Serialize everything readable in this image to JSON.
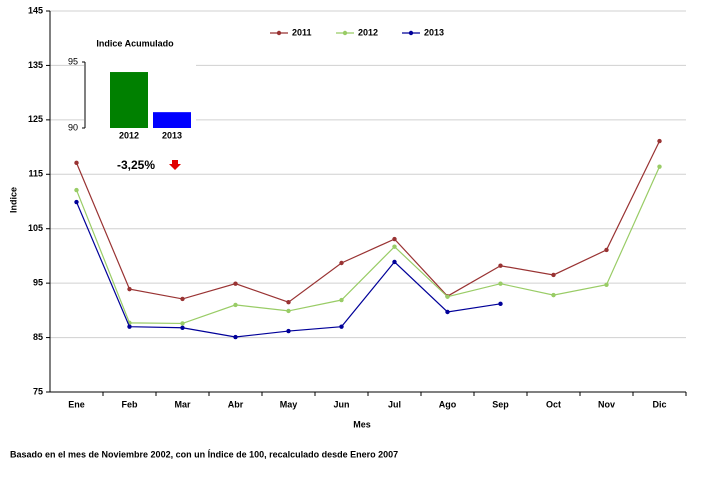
{
  "chart_data": [
    {
      "type": "line",
      "x_label": "Mes",
      "y_label": "Indice",
      "footnote": "Basado en el mes de Noviembre 2002, con un Índice de 100, recalculado desde Enero 2007",
      "categories": [
        "Ene",
        "Feb",
        "Mar",
        "Abr",
        "May",
        "Jun",
        "Jul",
        "Ago",
        "Sep",
        "Oct",
        "Nov",
        "Dic"
      ],
      "series": [
        {
          "name": "2011",
          "color": "#993333",
          "values": [
            117.1,
            93.9,
            92.1,
            94.9,
            91.5,
            98.7,
            103.1,
            92.6,
            98.2,
            96.5,
            101.1,
            121.1
          ]
        },
        {
          "name": "2012",
          "color": "#99cc66",
          "values": [
            112.1,
            87.7,
            87.6,
            91.0,
            89.9,
            91.9,
            101.7,
            92.5,
            94.9,
            92.8,
            94.7,
            116.4
          ]
        },
        {
          "name": "2013",
          "color": "#000099",
          "values": [
            109.9,
            87.0,
            86.8,
            85.1,
            86.2,
            87.0,
            98.9,
            89.7,
            91.2,
            null,
            null,
            null
          ]
        }
      ],
      "ylim": [
        75,
        145
      ],
      "yticks": [
        75,
        85,
        95,
        105,
        115,
        125,
        135,
        145
      ],
      "grid": true,
      "legend": "top"
    },
    {
      "type": "bar",
      "title": "Indice Acumulado",
      "categories": [
        "2012",
        "2013"
      ],
      "values": [
        94.24,
        91.2
      ],
      "colors": [
        "#008000",
        "#0000ff"
      ],
      "ylim": [
        90,
        95
      ],
      "yticks": [
        90,
        95
      ],
      "annotation": "-3,25%"
    }
  ]
}
